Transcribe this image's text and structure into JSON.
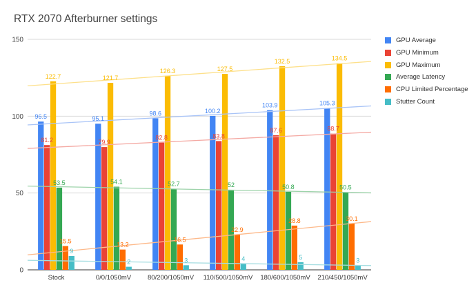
{
  "chart_data": {
    "type": "bar",
    "title": "RTX 2070 Afterburner settings",
    "xlabel": "",
    "ylabel": "",
    "ylim": [
      0,
      150
    ],
    "yticks": [
      "0",
      "50",
      "100",
      "150"
    ],
    "grid": true,
    "legend_position": "right",
    "trendlines": true,
    "categories": [
      "Stock",
      "0/0/1050mV",
      "80/200/1050mV",
      "110/500/1050mV",
      "180/600/1050mV",
      "210/450/1050mV"
    ],
    "series": [
      {
        "name": "GPU Average",
        "color": "#4285f4",
        "trend_color": "#a9c4f7",
        "values": [
          96.5,
          95.1,
          98.6,
          100.2,
          103.9,
          105.3
        ]
      },
      {
        "name": "GPU Minimum",
        "color": "#ea4335",
        "trend_color": "#f4a9a3",
        "values": [
          81.2,
          79.9,
          82.8,
          83.8,
          87.6,
          88.7
        ]
      },
      {
        "name": "GPU Maximum",
        "color": "#fbbc04",
        "trend_color": "#fde08a",
        "values": [
          122.7,
          121.7,
          126.3,
          127.5,
          132.5,
          134.5
        ]
      },
      {
        "name": "Average Latency",
        "color": "#34a853",
        "trend_color": "#9dd3aa",
        "values": [
          53.5,
          54.1,
          52.7,
          52,
          50.8,
          50.5
        ]
      },
      {
        "name": "CPU Limited Percentage",
        "color": "#ff6d01",
        "trend_color": "#fdb98a",
        "values": [
          15.5,
          13.2,
          16.5,
          22.9,
          28.8,
          30.1
        ]
      },
      {
        "name": "Stutter Count",
        "color": "#46bdc6",
        "trend_color": "#a5dde1",
        "values": [
          9,
          2,
          3,
          4,
          5,
          3
        ]
      }
    ]
  }
}
